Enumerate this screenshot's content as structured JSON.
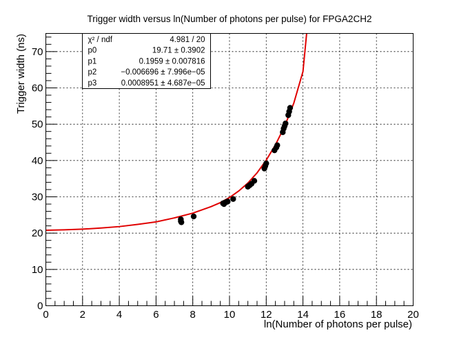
{
  "chart_data": {
    "type": "scatter",
    "title": "Trigger width versus ln(Number of photons per pulse) for FPGA2CH2",
    "xlabel": "ln(Number of photons per pulse)",
    "ylabel": "Trigger width (ns)",
    "xlim": [
      0,
      20
    ],
    "ylim": [
      0,
      75
    ],
    "x_ticks": [
      0,
      2,
      4,
      6,
      8,
      10,
      12,
      14,
      16,
      18,
      20
    ],
    "y_ticks": [
      0,
      10,
      20,
      30,
      40,
      50,
      60,
      70
    ],
    "grid": true,
    "marker_color": "#000000",
    "fit_color": "#e00000",
    "stats_box": {
      "rows": [
        {
          "name": "χ² / ndf",
          "value": "4.981 / 20"
        },
        {
          "name": "p0",
          "value": "19.71 ± 0.3902"
        },
        {
          "name": "p1",
          "value": "0.1959 ± 0.007816"
        },
        {
          "name": "p2",
          "value": "−0.006696 ± 7.996e−05"
        },
        {
          "name": "p3",
          "value": "0.0008951 ± 4.687e−05"
        }
      ]
    },
    "fit": {
      "function": "exp(p0*p3 + p1*x*p3... )",
      "samples_x": [
        0,
        1,
        2,
        3,
        4,
        5,
        6,
        7,
        8,
        9,
        9.5,
        10,
        10.5,
        11,
        11.5,
        12,
        12.5,
        13,
        13.5,
        14,
        14.2
      ],
      "samples_y": [
        20.8,
        20.9,
        21.1,
        21.4,
        21.8,
        22.4,
        23.1,
        24.2,
        25.5,
        27.3,
        28.4,
        29.8,
        31.6,
        33.8,
        36.6,
        40.1,
        44.3,
        49.4,
        55.8,
        64.5,
        75
      ]
    },
    "points": [
      {
        "x": 7.35,
        "y": 23.8
      },
      {
        "x": 7.35,
        "y": 23.3
      },
      {
        "x": 7.38,
        "y": 23.0
      },
      {
        "x": 8.05,
        "y": 24.6
      },
      {
        "x": 9.65,
        "y": 28.2
      },
      {
        "x": 9.7,
        "y": 28.0
      },
      {
        "x": 9.75,
        "y": 28.4
      },
      {
        "x": 9.85,
        "y": 28.6
      },
      {
        "x": 9.9,
        "y": 28.7
      },
      {
        "x": 10.2,
        "y": 29.4
      },
      {
        "x": 11.0,
        "y": 32.8
      },
      {
        "x": 11.1,
        "y": 33.2
      },
      {
        "x": 11.2,
        "y": 33.6
      },
      {
        "x": 11.35,
        "y": 34.4
      },
      {
        "x": 11.9,
        "y": 37.8
      },
      {
        "x": 11.95,
        "y": 38.5
      },
      {
        "x": 12.0,
        "y": 39.2
      },
      {
        "x": 12.45,
        "y": 42.8
      },
      {
        "x": 12.55,
        "y": 43.6
      },
      {
        "x": 12.6,
        "y": 44.2
      },
      {
        "x": 12.9,
        "y": 47.8
      },
      {
        "x": 12.95,
        "y": 48.8
      },
      {
        "x": 13.0,
        "y": 49.5
      },
      {
        "x": 13.05,
        "y": 50.2
      },
      {
        "x": 13.2,
        "y": 52.5
      },
      {
        "x": 13.25,
        "y": 53.5
      },
      {
        "x": 13.3,
        "y": 54.5
      }
    ]
  }
}
